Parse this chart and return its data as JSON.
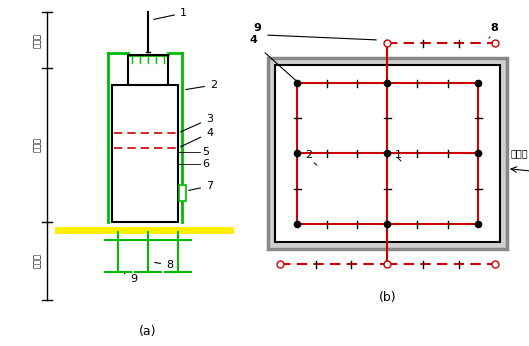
{
  "title_a": "(a)",
  "title_b": "(b)",
  "label_left_top": "避雷器",
  "label_left_mid": "引下线",
  "label_left_bot": "接地体",
  "label_jianzhu": "建筑物",
  "bg_color": "#ffffff",
  "line_color_black": "#000000",
  "line_color_green": "#00bb00",
  "line_color_red": "#cc0000",
  "line_color_yellow": "#ffee00",
  "line_color_gray": "#888888"
}
